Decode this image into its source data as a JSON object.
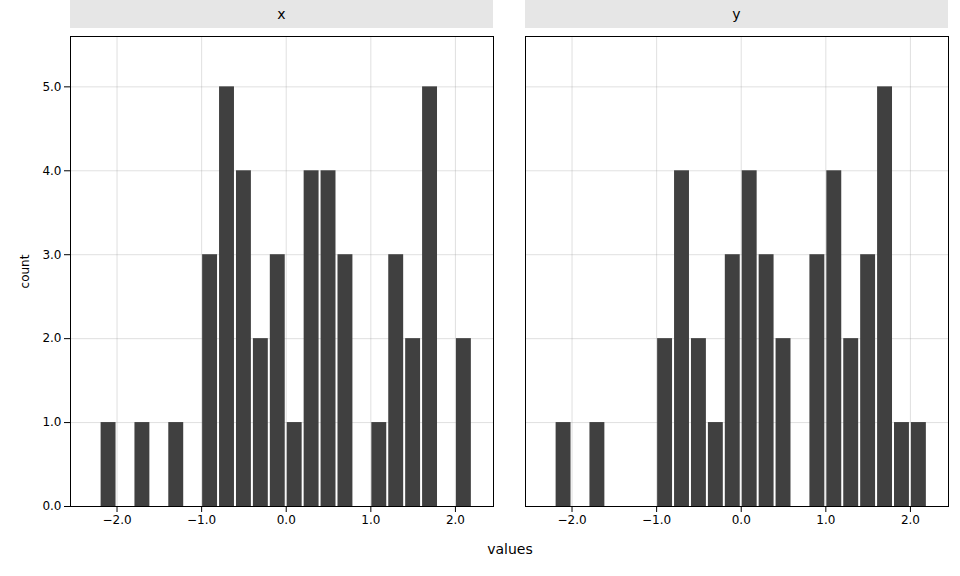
{
  "chart_data": [
    {
      "type": "histogram",
      "title": "x",
      "bins": [
        -2.4,
        -2.2,
        -2.0,
        -1.8,
        -1.6,
        -1.4,
        -1.2,
        -1.0,
        -0.8,
        -0.6,
        -0.4,
        -0.2,
        0.0,
        0.2,
        0.4,
        0.6,
        0.8,
        1.0,
        1.2,
        1.4,
        1.6,
        1.8,
        2.0,
        2.2,
        2.4
      ],
      "values": [
        0,
        1,
        0,
        1,
        0,
        1,
        0,
        3,
        5,
        4,
        2,
        3,
        1,
        4,
        4,
        3,
        0,
        1,
        3,
        2,
        5,
        0,
        2,
        0
      ],
      "color": "#404040",
      "xlabel": "values",
      "ylabel": "count",
      "xlim": [
        -2.55,
        2.45
      ],
      "xticks": [
        -2,
        -1,
        0,
        1,
        2
      ],
      "ylim": [
        0,
        5.6
      ],
      "yticks": [
        0,
        1,
        2,
        3,
        4,
        5
      ],
      "grid": true
    },
    {
      "type": "histogram",
      "title": "y",
      "bins": [
        -2.4,
        -2.2,
        -2.0,
        -1.8,
        -1.6,
        -1.4,
        -1.2,
        -1.0,
        -0.8,
        -0.6,
        -0.4,
        -0.2,
        0.0,
        0.2,
        0.4,
        0.6,
        0.8,
        1.0,
        1.2,
        1.4,
        1.6,
        1.8,
        2.0,
        2.2,
        2.4
      ],
      "values": [
        0,
        1,
        0,
        1,
        0,
        0,
        0,
        2,
        4,
        2,
        1,
        3,
        4,
        3,
        2,
        0,
        3,
        4,
        2,
        3,
        5,
        1,
        1,
        0
      ],
      "color": "#404040",
      "xlabel": "values",
      "ylabel": "count",
      "xlim": [
        -2.55,
        2.45
      ],
      "xticks": [
        -2,
        -1,
        0,
        1,
        2
      ],
      "ylim": [
        0,
        5.6
      ],
      "yticks": [
        0,
        1,
        2,
        3,
        4,
        5
      ],
      "grid": true,
      "tick_labels": "x"
    }
  ]
}
